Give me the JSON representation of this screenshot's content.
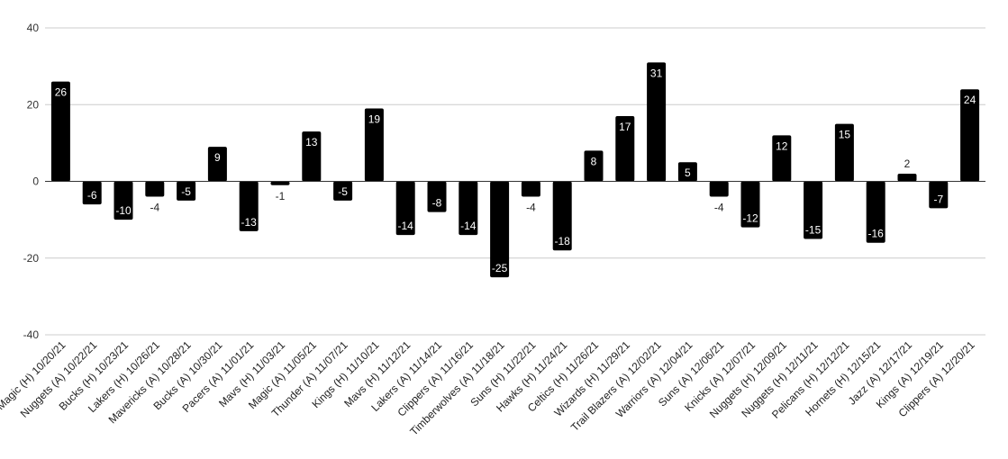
{
  "chart_data": {
    "type": "bar",
    "title": "",
    "xlabel": "",
    "ylabel": "",
    "ylim": [
      -40,
      40
    ],
    "yticks": [
      -40,
      -20,
      0,
      20,
      40
    ],
    "grid": true,
    "legend": "none",
    "bar_color": "#000000",
    "grid_color": "#cccccc",
    "categories": [
      "Magic (H) 10/20/21",
      "Nuggets (A) 10/22/21",
      "Bucks (H) 10/23/21",
      "Lakers (H) 10/26/21",
      "Mavericks (A) 10/28/21",
      "Bucks (A) 10/30/21",
      "Pacers (A) 11/01/21",
      "Mavs (H) 11/03/21",
      "Magic (A) 11/05/21",
      "Thunder (A) 11/07/21",
      "Kings (H) 11/10/21",
      "Mavs (H) 11/12/21",
      "Lakers (A) 11/14/21",
      "Clippers (A) 11/16/21",
      "Timberwolves (A) 11/18/21",
      "Suns (H) 11/22/21",
      "Hawks (H) 11/24/21",
      "Celtics (H) 11/26/21",
      "Wizards (H) 11/29/21",
      "Trail Blazers (A) 12/02/21",
      "Warriors (A) 12/04/21",
      "Suns (A) 12/06/21",
      "Knicks (A) 12/07/21",
      "Nuggets (H) 12/09/21",
      "Nuggets (H) 12/11/21",
      "Pelicans (H) 12/12/21",
      "Hornets (H) 12/15/21",
      "Jazz (A) 12/17/21",
      "Kings (A) 12/19/21",
      "Clippers (A) 12/20/21"
    ],
    "values": [
      26,
      -6,
      -10,
      -4,
      -5,
      9,
      -13,
      -1,
      13,
      -5,
      19,
      -14,
      -8,
      -14,
      -25,
      -4,
      -18,
      8,
      17,
      31,
      5,
      -4,
      -12,
      12,
      -15,
      15,
      -16,
      2,
      -7,
      24
    ]
  }
}
